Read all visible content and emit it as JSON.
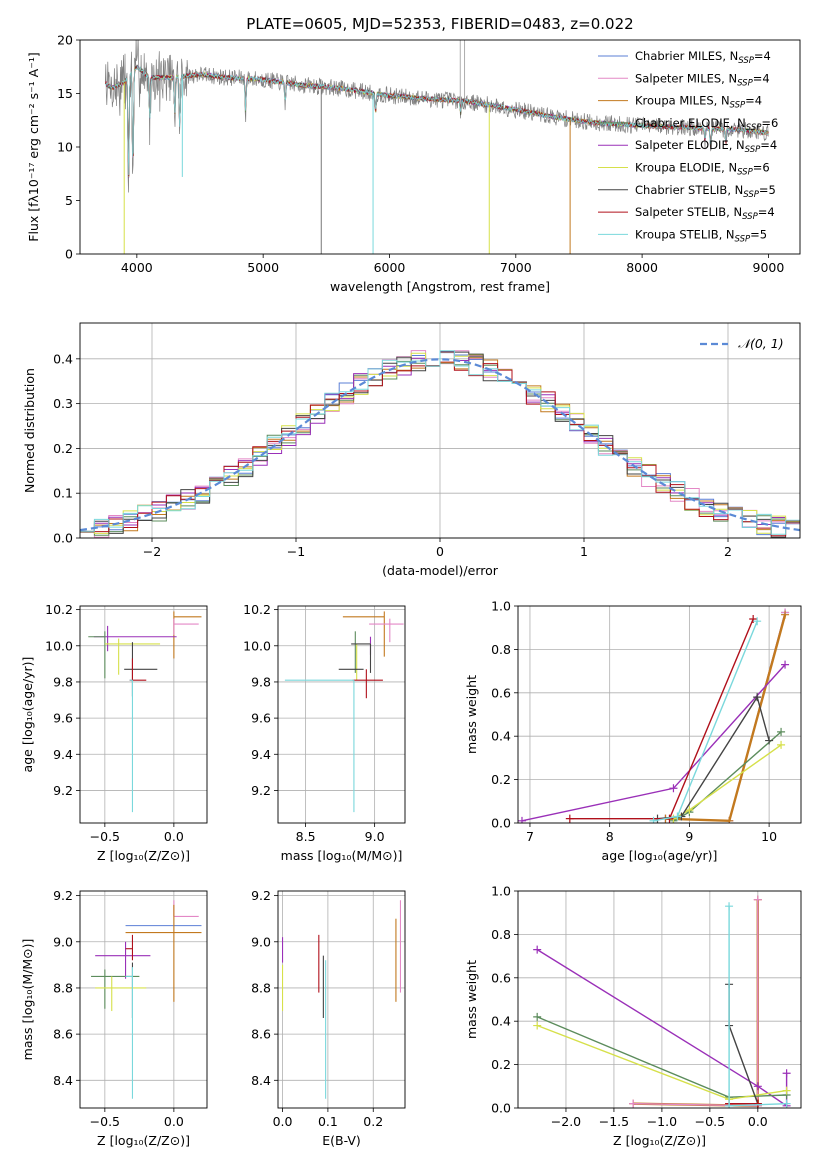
{
  "figure": {
    "title": "PLATE=0605, MJD=52353, FIBERID=0483, z=0.022"
  },
  "chart_data": [
    {
      "id": "spectrum",
      "type": "line",
      "xlabel": "wavelength [Angstrom, rest frame]",
      "ylabel": "Flux [fλ10⁻¹⁷ erg cm⁻² s⁻¹ A⁻¹]",
      "xlim": [
        3550,
        9250
      ],
      "ylim": [
        0,
        20
      ],
      "xticks": [
        4000,
        5000,
        6000,
        7000,
        8000,
        9000
      ],
      "yticks": [
        0,
        5,
        10,
        15,
        20
      ],
      "grid": false,
      "legend_position": "top-right",
      "legend": [
        {
          "label": "Chabrier MILES, N",
          "sub": "SSP",
          "suffix": "=4",
          "color": "#5b7fd6"
        },
        {
          "label": "Salpeter MILES, N",
          "sub": "SSP",
          "suffix": "=4",
          "color": "#e388c6"
        },
        {
          "label": "Kroupa MILES, N",
          "sub": "SSP",
          "suffix": "=4",
          "color": "#c2791f"
        },
        {
          "label": "Chabrier ELODIE, N",
          "sub": "SSP",
          "suffix": "=6",
          "color": "#5c8c5c"
        },
        {
          "label": "Salpeter ELODIE, N",
          "sub": "SSP",
          "suffix": "=4",
          "color": "#9a30b8"
        },
        {
          "label": "Kroupa ELODIE, N",
          "sub": "SSP",
          "suffix": "=6",
          "color": "#d6e04a"
        },
        {
          "label": "Chabrier STELIB, N",
          "sub": "SSP",
          "suffix": "=5",
          "color": "#444444"
        },
        {
          "label": "Salpeter STELIB, N",
          "sub": "SSP",
          "suffix": "=4",
          "color": "#b0101b"
        },
        {
          "label": "Kroupa STELIB, N",
          "sub": "SSP",
          "suffix": "=5",
          "color": "#7ad8dc"
        }
      ],
      "continuum": {
        "x": [
          3750,
          3800,
          3900,
          4000,
          4100,
          4300,
          4500,
          4700,
          5000,
          5300,
          5600,
          6000,
          6300,
          6600,
          7000,
          7300,
          7600,
          8000,
          8400,
          8800,
          9000
        ],
        "y": [
          16,
          15.5,
          16,
          17.5,
          16.5,
          16.5,
          16.8,
          16.5,
          16.3,
          15.8,
          15.5,
          14.8,
          14.5,
          14.3,
          13.5,
          12.8,
          12.3,
          12.0,
          11.8,
          11.6,
          11.3
        ]
      },
      "absorption": [
        {
          "x": 3934,
          "y": 5
        },
        {
          "x": 3969,
          "y": 6
        },
        {
          "x": 4102,
          "y": 12
        },
        {
          "x": 4300,
          "y": 12.5
        },
        {
          "x": 4340,
          "y": 11
        },
        {
          "x": 4861,
          "y": 13
        },
        {
          "x": 5175,
          "y": 14
        },
        {
          "x": 5890,
          "y": 13
        },
        {
          "x": 6563,
          "y": 13
        },
        {
          "x": 8498,
          "y": 10.5
        },
        {
          "x": 8542,
          "y": 9.8
        },
        {
          "x": 8662,
          "y": 10.2
        }
      ],
      "artifacts": [
        {
          "x": 3900,
          "y": 0,
          "color": "#d6e04a"
        },
        {
          "x": 4360,
          "y": 7.2,
          "color": "#7ad8dc"
        },
        {
          "x": 5460,
          "y": 0,
          "color": "#777777"
        },
        {
          "x": 5870,
          "y": 0,
          "color": "#7ad8dc"
        },
        {
          "x": 6790,
          "y": 0,
          "color": "#d6e04a"
        },
        {
          "x": 7430,
          "y": 0,
          "color": "#c2791f"
        }
      ]
    },
    {
      "id": "residuals",
      "type": "step",
      "xlabel": "(data-model)/error",
      "ylabel": "Normed distribution",
      "xlim": [
        -2.5,
        2.5
      ],
      "ylim": [
        0,
        0.48
      ],
      "xticks": [
        -2,
        -1,
        0,
        1,
        2
      ],
      "xtick_labels": [
        "−2",
        "−1",
        "0",
        "1",
        "2"
      ],
      "yticks": [
        0.0,
        0.1,
        0.2,
        0.3,
        0.4
      ],
      "grid": true,
      "legend_position": "top-right",
      "gaussian_label": "𝒩(0, 1)",
      "gaussian_color": "#5b8ad6",
      "bin_width": 0.1
    },
    {
      "id": "z-age",
      "type": "errorbar",
      "xlabel": "Z [log₁₀(Z/Z⊙)]",
      "ylabel": "age  [log₁₀(age/yr)]",
      "xlim": [
        -0.68,
        0.24
      ],
      "ylim": [
        9.02,
        10.22
      ],
      "xticks": [
        -0.5,
        0.0
      ],
      "xtick_labels": [
        "−0.5",
        "0.0"
      ],
      "yticks": [
        9.2,
        9.4,
        9.6,
        9.8,
        10.0,
        10.2
      ],
      "grid": true,
      "points": [
        {
          "x": 0.0,
          "y": 10.16,
          "xerr": [
            0.0,
            0.2
          ],
          "yerr": [
            0.23,
            0.03
          ],
          "color": "#c2791f"
        },
        {
          "x": 0.0,
          "y": 10.12,
          "xerr": [
            0.0,
            0.18
          ],
          "yerr": [
            0.06,
            0.03
          ],
          "color": "#e388c6"
        },
        {
          "x": -0.48,
          "y": 10.05,
          "xerr": [
            0.1,
            0.5
          ],
          "yerr": [
            0.08,
            0.06
          ],
          "color": "#9a30b8"
        },
        {
          "x": -0.5,
          "y": 10.05,
          "xerr": [
            0.12,
            0.0
          ],
          "yerr": [
            0.23,
            0.03
          ],
          "color": "#5c8c5c"
        },
        {
          "x": -0.4,
          "y": 10.01,
          "xerr": [
            0.1,
            0.3
          ],
          "yerr": [
            0.17,
            0.03
          ],
          "color": "#d6e04a"
        },
        {
          "x": -0.3,
          "y": 9.87,
          "xerr": [
            0.06,
            0.18
          ],
          "yerr": [
            0.15,
            0.15
          ],
          "color": "#444444"
        },
        {
          "x": -0.3,
          "y": 9.81,
          "xerr": [
            0.02,
            0.1
          ],
          "yerr": [
            0.0,
            0.12
          ],
          "color": "#b0101b"
        },
        {
          "x": -0.3,
          "y": 9.81,
          "xerr": [
            0.02,
            0.0
          ],
          "yerr": [
            0.73,
            0.0
          ],
          "color": "#7ad8dc"
        }
      ]
    },
    {
      "id": "mass-age",
      "type": "errorbar",
      "xlabel": "mass [log₁₀(M/M⊙)]",
      "ylabel": "",
      "xlim": [
        8.3,
        9.22
      ],
      "ylim": [
        9.02,
        10.22
      ],
      "xticks": [
        8.5,
        9.0
      ],
      "xtick_labels": [
        "8.5",
        "9.0"
      ],
      "yticks": [
        9.2,
        9.4,
        9.6,
        9.8,
        10.0,
        10.2
      ],
      "grid": true,
      "points": [
        {
          "x": 9.07,
          "y": 10.16,
          "xerr": [
            0.3,
            0.0
          ],
          "yerr": [
            0.22,
            0.03
          ],
          "color": "#c2791f"
        },
        {
          "x": 9.11,
          "y": 10.12,
          "xerr": [
            0.15,
            0.1
          ],
          "yerr": [
            0.1,
            0.03
          ],
          "color": "#e388c6"
        },
        {
          "x": 8.97,
          "y": 10.05,
          "xerr": [
            0.0,
            0.0
          ],
          "yerr": [
            0.1,
            0.0
          ],
          "color": "#9a30b8"
        },
        {
          "x": 8.86,
          "y": 10.05,
          "xerr": [
            0.0,
            0.0
          ],
          "yerr": [
            0.2,
            0.03
          ],
          "color": "#5c8c5c"
        },
        {
          "x": 8.87,
          "y": 10.01,
          "xerr": [
            0.0,
            0.0
          ],
          "yerr": [
            0.2,
            0.0
          ],
          "color": "#d6e04a"
        },
        {
          "x": 8.97,
          "y": 10.01,
          "xerr": [
            0.14,
            0.0
          ],
          "yerr": [
            0.16,
            0.0
          ],
          "color": "#444444"
        },
        {
          "x": 8.94,
          "y": 9.81,
          "xerr": [
            0.1,
            0.12
          ],
          "yerr": [
            0.1,
            0.06
          ],
          "color": "#b0101b"
        },
        {
          "x": 8.85,
          "y": 9.81,
          "xerr": [
            0.5,
            0.0
          ],
          "yerr": [
            0.73,
            0.0
          ],
          "color": "#7ad8dc"
        },
        {
          "x": 8.92,
          "y": 9.87,
          "xerr": [
            0.18,
            0.0
          ],
          "yerr": [
            0.0,
            0.0
          ],
          "color": "#444444"
        }
      ]
    },
    {
      "id": "age-weight",
      "type": "line",
      "xlabel": "age  [log₁₀(age/yr)]",
      "ylabel": "mass weight",
      "xlim": [
        6.85,
        10.4
      ],
      "ylim": [
        0,
        1.0
      ],
      "xticks": [
        7,
        8,
        9,
        10
      ],
      "yticks": [
        0.0,
        0.2,
        0.4,
        0.6,
        0.8,
        1.0
      ],
      "grid": true,
      "series": [
        {
          "color": "#5b7fd6",
          "x": [
            8.7,
            9.5,
            10.2
          ],
          "y": [
            0.02,
            0.01,
            0.97
          ]
        },
        {
          "color": "#e388c6",
          "x": [
            8.7,
            9.5,
            10.2
          ],
          "y": [
            0.02,
            0.01,
            0.97
          ]
        },
        {
          "color": "#c2791f",
          "x": [
            8.7,
            9.5,
            10.2
          ],
          "y": [
            0.02,
            0.01,
            0.96
          ]
        },
        {
          "color": "#5c8c5c",
          "x": [
            8.8,
            9.0,
            10.15
          ],
          "y": [
            0.01,
            0.05,
            0.42
          ]
        },
        {
          "color": "#9a30b8",
          "x": [
            6.9,
            8.8,
            10.2
          ],
          "y": [
            0.01,
            0.16,
            0.73
          ]
        },
        {
          "color": "#d6e04a",
          "x": [
            8.8,
            9.0,
            10.15
          ],
          "y": [
            0.02,
            0.06,
            0.36
          ]
        },
        {
          "color": "#444444",
          "x": [
            8.6,
            8.9,
            9.85,
            10.0
          ],
          "y": [
            0.02,
            0.03,
            0.58,
            0.38
          ]
        },
        {
          "color": "#b0101b",
          "x": [
            7.5,
            8.75,
            9.8
          ],
          "y": [
            0.02,
            0.02,
            0.94
          ]
        },
        {
          "color": "#7ad8dc",
          "x": [
            8.55,
            8.85,
            9.85
          ],
          "y": [
            0.01,
            0.03,
            0.93
          ]
        }
      ]
    },
    {
      "id": "z-mass",
      "type": "errorbar",
      "xlabel": "Z [log₁₀(Z/Z⊙)]",
      "ylabel": "mass [log₁₀(M/M⊙)]",
      "xlim": [
        -0.68,
        0.24
      ],
      "ylim": [
        8.28,
        9.22
      ],
      "xticks": [
        -0.5,
        0.0
      ],
      "xtick_labels": [
        "−0.5",
        "0.0"
      ],
      "yticks": [
        8.4,
        8.6,
        8.8,
        9.0,
        9.2
      ],
      "grid": true,
      "points": [
        {
          "x": 0.0,
          "y": 9.11,
          "xerr": [
            0.0,
            0.18
          ],
          "yerr": [
            0.0,
            0.07
          ],
          "color": "#e388c6"
        },
        {
          "x": 0.0,
          "y": 9.07,
          "xerr": [
            0.35,
            0.2
          ],
          "yerr": [
            0.0,
            0.0
          ],
          "color": "#5b7fd6"
        },
        {
          "x": 0.0,
          "y": 9.04,
          "xerr": [
            0.35,
            0.2
          ],
          "yerr": [
            0.3,
            0.12
          ],
          "color": "#c2791f"
        },
        {
          "x": -0.35,
          "y": 8.94,
          "xerr": [
            0.22,
            0.18
          ],
          "yerr": [
            0.1,
            0.06
          ],
          "color": "#9a30b8"
        },
        {
          "x": -0.3,
          "y": 8.97,
          "xerr": [
            0.05,
            0.0
          ],
          "yerr": [
            0.05,
            0.06
          ],
          "color": "#b0101b"
        },
        {
          "x": -0.3,
          "y": 8.91,
          "xerr": [
            0.0,
            0.0
          ],
          "yerr": [
            0.24,
            0.0
          ],
          "color": "#444444"
        },
        {
          "x": -0.5,
          "y": 8.85,
          "xerr": [
            0.1,
            0.25
          ],
          "yerr": [
            0.14,
            0.03
          ],
          "color": "#5c8c5c"
        },
        {
          "x": -0.45,
          "y": 8.8,
          "xerr": [
            0.12,
            0.25
          ],
          "yerr": [
            0.1,
            0.05
          ],
          "color": "#d6e04a"
        },
        {
          "x": -0.3,
          "y": 8.85,
          "xerr": [
            0.05,
            0.0
          ],
          "yerr": [
            0.53,
            0.04
          ],
          "color": "#7ad8dc"
        }
      ]
    },
    {
      "id": "ebv-mass",
      "type": "errorbar",
      "xlabel": "E(B-V)",
      "ylabel": "",
      "xlim": [
        -0.01,
        0.27
      ],
      "ylim": [
        8.28,
        9.22
      ],
      "xticks": [
        0.0,
        0.1,
        0.2
      ],
      "xtick_labels": [
        "0.0",
        "0.1",
        "0.2"
      ],
      "yticks": [
        8.4,
        8.6,
        8.8,
        9.0,
        9.2
      ],
      "grid": true,
      "points": [
        {
          "x": 0.0,
          "y": 8.97,
          "xerr": [
            0,
            0
          ],
          "yerr": [
            0.06,
            0.05
          ],
          "color": "#9a30b8"
        },
        {
          "x": 0.0,
          "y": 8.8,
          "xerr": [
            0,
            0
          ],
          "yerr": [
            0.1,
            0.1
          ],
          "color": "#d6e04a"
        },
        {
          "x": 0.08,
          "y": 8.9,
          "xerr": [
            0,
            0
          ],
          "yerr": [
            0.12,
            0.13
          ],
          "color": "#b0101b"
        },
        {
          "x": 0.09,
          "y": 8.82,
          "xerr": [
            0,
            0
          ],
          "yerr": [
            0.15,
            0.12
          ],
          "color": "#444444"
        },
        {
          "x": 0.095,
          "y": 8.62,
          "xerr": [
            0,
            0
          ],
          "yerr": [
            0.3,
            0.3
          ],
          "color": "#7ad8dc"
        },
        {
          "x": 0.25,
          "y": 8.92,
          "xerr": [
            0,
            0
          ],
          "yerr": [
            0.18,
            0.18
          ],
          "color": "#c2791f"
        },
        {
          "x": 0.26,
          "y": 8.96,
          "xerr": [
            0,
            0
          ],
          "yerr": [
            0.18,
            0.22
          ],
          "color": "#e388c6"
        }
      ]
    },
    {
      "id": "z-weight",
      "type": "line",
      "xlabel": "Z [log₁₀(Z/Z⊙)]",
      "ylabel": "mass weight",
      "xlim": [
        -2.5,
        0.45
      ],
      "ylim": [
        0,
        1.0
      ],
      "xticks": [
        -2.0,
        -1.5,
        -1.0,
        -0.5,
        0.0
      ],
      "xtick_labels": [
        "−2.0",
        "−1.5",
        "−1.0",
        "−0.5",
        "0.0"
      ],
      "yticks": [
        0.0,
        0.2,
        0.4,
        0.6,
        0.8,
        1.0
      ],
      "grid": true,
      "series": [
        {
          "color": "#c2791f",
          "x": [
            -1.3,
            0.0,
            0.0
          ],
          "y": [
            0.02,
            0.01,
            0.96
          ]
        },
        {
          "color": "#e388c6",
          "x": [
            -1.3,
            0.0,
            0.0
          ],
          "y": [
            0.02,
            0.01,
            0.96
          ]
        },
        {
          "color": "#9a30b8",
          "x": [
            -2.3,
            0.0,
            0.3,
            0.3
          ],
          "y": [
            0.73,
            0.1,
            0.01,
            0.16
          ]
        },
        {
          "color": "#5c8c5c",
          "x": [
            -2.3,
            -0.3,
            0.3
          ],
          "y": [
            0.42,
            0.05,
            0.06
          ]
        },
        {
          "color": "#d6e04a",
          "x": [
            -2.3,
            -0.3,
            0.3
          ],
          "y": [
            0.38,
            0.04,
            0.08
          ]
        },
        {
          "color": "#444444",
          "x": [
            -0.3,
            -0.3,
            0.0
          ],
          "y": [
            0.57,
            0.38,
            0.02
          ]
        },
        {
          "color": "#b0101b",
          "x": [
            -0.3,
            0.0
          ],
          "y": [
            0.02,
            0.02
          ]
        },
        {
          "color": "#7ad8dc",
          "x": [
            -0.3,
            -0.3,
            0.3
          ],
          "y": [
            0.93,
            0.01,
            0.02
          ]
        }
      ]
    }
  ]
}
